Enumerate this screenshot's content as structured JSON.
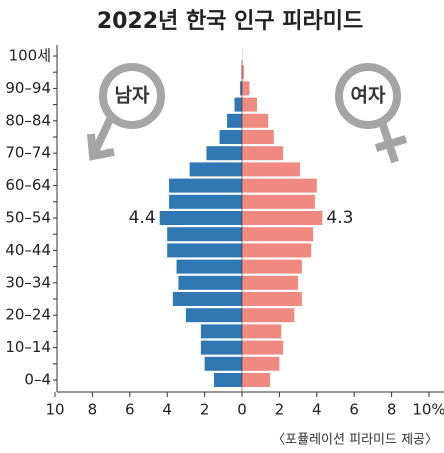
{
  "chart_data": {
    "type": "pyramid",
    "title": "2022년 한국 인구 피라미드",
    "categories": [
      "0–4",
      null,
      "10–14",
      null,
      "20–24",
      null,
      "30–34",
      null,
      "40–44",
      null,
      "50–54",
      null,
      "60–64",
      null,
      "70–74",
      null,
      "80–84",
      null,
      "90–94",
      null,
      "100세"
    ],
    "series": [
      {
        "name": "남자",
        "color": "#2f78b4",
        "side": "left",
        "values": [
          1.5,
          2.0,
          2.2,
          2.2,
          3.0,
          3.7,
          3.4,
          3.5,
          4.0,
          4.0,
          4.4,
          3.9,
          3.9,
          2.8,
          1.9,
          1.2,
          0.8,
          0.4,
          0.1,
          0.02,
          0
        ],
        "value_labels": [
          null,
          null,
          null,
          null,
          null,
          null,
          null,
          null,
          null,
          null,
          "4.4",
          null,
          null,
          null,
          null,
          null,
          null,
          null,
          null,
          null,
          null
        ]
      },
      {
        "name": "여자",
        "color": "#f08a80",
        "side": "right",
        "values": [
          1.5,
          2.0,
          2.2,
          2.1,
          2.8,
          3.2,
          3.0,
          3.2,
          3.7,
          3.8,
          4.3,
          3.9,
          4.0,
          3.1,
          2.2,
          1.7,
          1.4,
          0.8,
          0.4,
          0.1,
          0.02
        ],
        "value_labels": [
          null,
          null,
          null,
          null,
          null,
          null,
          null,
          null,
          null,
          null,
          "4.3",
          null,
          null,
          null,
          null,
          null,
          null,
          null,
          null,
          null,
          null
        ]
      }
    ],
    "xlim": [
      -10,
      10
    ],
    "xticks": [
      {
        "value": -10,
        "label": "10"
      },
      {
        "value": -8,
        "label": "8"
      },
      {
        "value": -6,
        "label": "6"
      },
      {
        "value": -4,
        "label": "4"
      },
      {
        "value": -2,
        "label": "2"
      },
      0,
      2,
      4,
      6,
      8,
      {
        "value": 10,
        "label": "10%"
      }
    ],
    "source": "〈포퓰레이션 피라미드 제공〉"
  }
}
